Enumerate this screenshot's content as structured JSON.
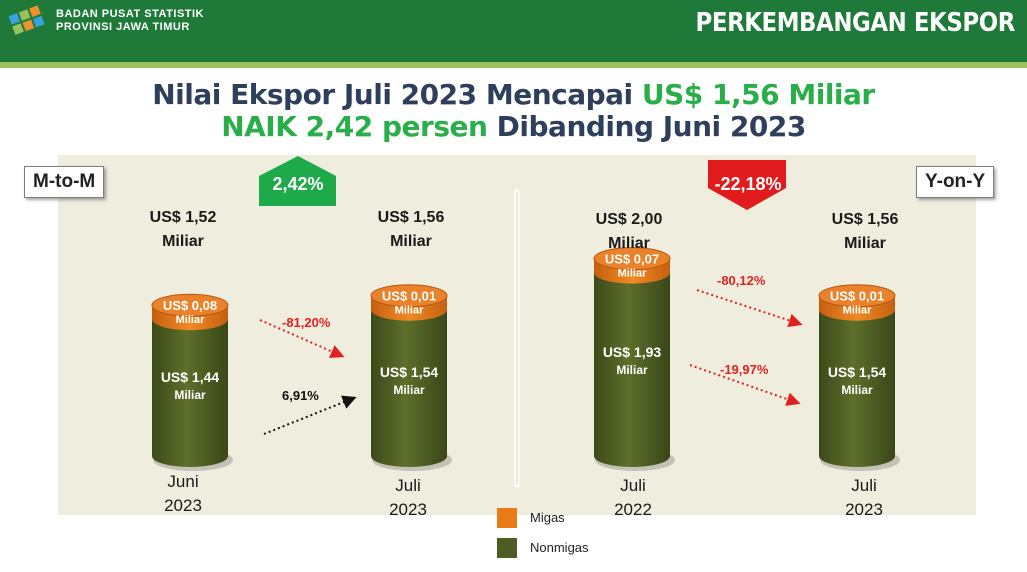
{
  "header": {
    "org_line_1": "BADAN PUSAT STATISTIK",
    "org_line_2": "PROVINSI JAWA TIMUR",
    "section_title": "PERKEMBANGAN EKSPOR",
    "logo_icon": "bps-logo-icon"
  },
  "title": {
    "line1_a": "Nilai Ekspor Juli 2023 Mencapai ",
    "line1_b": "US$ 1,56 Miliar",
    "line2_a": "NAIK 2,42 persen",
    "line2_b": " Dibanding Juni 2023"
  },
  "colors": {
    "header_green": "#1f7a3a",
    "title_green": "#2aae4a",
    "title_dark": "#2e3f5c",
    "migas": "#ea7a16",
    "nonmigas": "#4e5e23",
    "badge_up": "#1faa4a",
    "badge_down": "#e11b1b",
    "panel": "#efedde"
  },
  "chart_data": [
    {
      "type": "bar",
      "panel": "M-to-M",
      "change_badge": "2,42%",
      "categories": [
        "Juni 2023",
        "Juli 2023"
      ],
      "series": [
        {
          "name": "Migas",
          "values": [
            0.08,
            0.01
          ],
          "labels": [
            "US$ 0,08",
            "US$ 0,01"
          ]
        },
        {
          "name": "Nonmigas",
          "values": [
            1.44,
            1.54
          ],
          "labels": [
            "US$ 1,44",
            "US$ 1,54"
          ]
        }
      ],
      "totals": [
        1.52,
        1.56
      ],
      "total_labels": [
        "US$ 1,52",
        "US$ 1,56"
      ],
      "unit_label": "Miliar",
      "x_labels": [
        {
          "l1": "Juni",
          "l2": "2023"
        },
        {
          "l1": "Juli",
          "l2": "2023"
        }
      ],
      "annotations": [
        "-81,20%",
        "6,91%"
      ]
    },
    {
      "type": "bar",
      "panel": "Y-on-Y",
      "change_badge": "-22,18%",
      "categories": [
        "Juli 2022",
        "Juli 2023"
      ],
      "series": [
        {
          "name": "Migas",
          "values": [
            0.07,
            0.01
          ],
          "labels": [
            "US$ 0,07",
            "US$ 0,01"
          ]
        },
        {
          "name": "Nonmigas",
          "values": [
            1.93,
            1.54
          ],
          "labels": [
            "US$ 1,93",
            "US$ 1,54"
          ]
        }
      ],
      "totals": [
        2.0,
        1.56
      ],
      "total_labels": [
        "US$ 2,00",
        "US$ 1,56"
      ],
      "unit_label": "Miliar",
      "x_labels": [
        {
          "l1": "Juli",
          "l2": "2022"
        },
        {
          "l1": "Juli",
          "l2": "2023"
        }
      ],
      "annotations": [
        "-80,12%",
        "-19,97%"
      ]
    }
  ],
  "legend": {
    "migas": "Migas",
    "nonmigas": "Nonmigas"
  }
}
